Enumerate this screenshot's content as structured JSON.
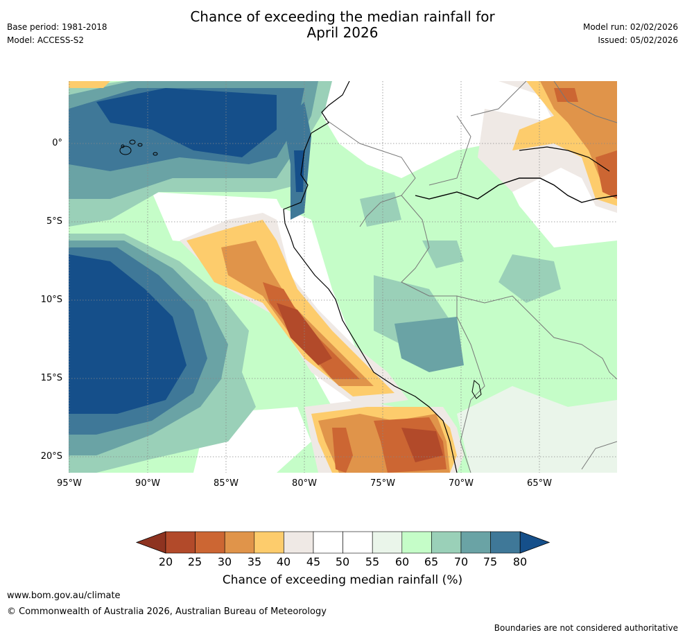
{
  "header": {
    "title_line1": "Chance of exceeding the median rainfall for",
    "title_line2": "April 2026",
    "base_period": "Base period: 1981-2018",
    "model": "Model: ACCESS-S2",
    "model_run": "Model run: 02/02/2026",
    "issued": "Issued: 05/02/2026"
  },
  "map": {
    "lat_labels": [
      "0°",
      "5°S",
      "10°S",
      "15°S",
      "20°S"
    ],
    "lon_labels": [
      "95°W",
      "90°W",
      "85°W",
      "80°W",
      "75°W",
      "70°W",
      "65°W"
    ]
  },
  "colorbar": {
    "ticks": [
      "20",
      "25",
      "30",
      "35",
      "40",
      "45",
      "50",
      "55",
      "60",
      "65",
      "70",
      "75",
      "80"
    ],
    "colors": [
      "#8e3320",
      "#b24a2a",
      "#cc6633",
      "#e0944a",
      "#fdcc6c",
      "#efe9e5",
      "#ffffff",
      "#ffffff",
      "#eaf5ea",
      "#c5fdc8",
      "#9ad0b8",
      "#6aa3a5",
      "#3f7898",
      "#154f8a"
    ],
    "label": "Chance of exceeding median rainfall (%)"
  },
  "footer": {
    "url": "www.bom.gov.au/climate",
    "copyright": "© Commonwealth of Australia 2026, Australian Bureau of Meteorology",
    "disclaimer": "Boundaries are not considered authoritative"
  }
}
